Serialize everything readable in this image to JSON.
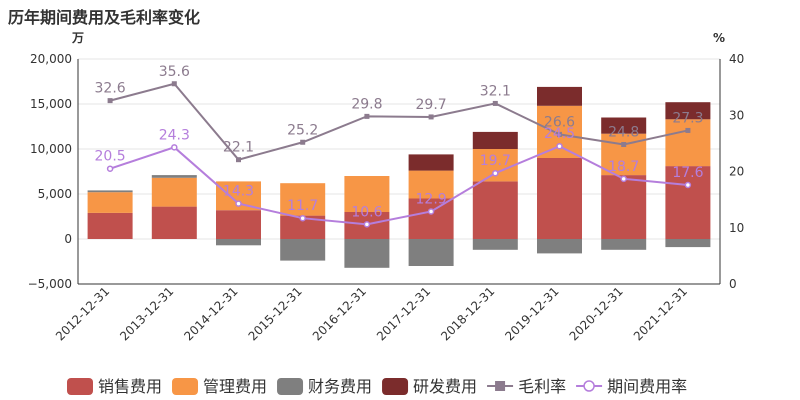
{
  "chart_data": {
    "type": "bar",
    "title": "历年期间费用及毛利率变化",
    "y_left_unit": "万",
    "y_right_unit": "%",
    "y_left_ticks": [
      "20,000",
      "15,000",
      "10,000",
      "5,000",
      "0",
      "−5,000"
    ],
    "y_right_ticks": [
      "40",
      "30",
      "20",
      "10",
      "0"
    ],
    "ylim_left": [
      -5000,
      20000
    ],
    "ylim_right": [
      0,
      40
    ],
    "categories": [
      "2012-12-31",
      "2013-12-31",
      "2014-12-31",
      "2015-12-31",
      "2016-12-31",
      "2017-12-31",
      "2018-12-31",
      "2019-12-31",
      "2020-12-31",
      "2021-12-31"
    ],
    "bar_series": [
      {
        "name": "销售费用",
        "color": "#c0504d",
        "values": [
          2900,
          3600,
          3200,
          2600,
          3000,
          4500,
          6400,
          9000,
          7100,
          8100
        ]
      },
      {
        "name": "管理费用",
        "color": "#f79646",
        "values": [
          2300,
          3200,
          3200,
          3600,
          4000,
          3100,
          3600,
          5800,
          4600,
          5200
        ]
      },
      {
        "name": "财务费用",
        "color": "#7f7f7f",
        "values": [
          200,
          300,
          -700,
          -2400,
          -3200,
          -3000,
          -1200,
          -1600,
          -1200,
          -900
        ]
      },
      {
        "name": "研发费用",
        "color": "#7b2c2c",
        "values": [
          0,
          0,
          0,
          0,
          0,
          1800,
          1900,
          2100,
          1800,
          1900
        ]
      }
    ],
    "line_series": [
      {
        "name": "毛利率",
        "color": "#8c7b8e",
        "marker": "square",
        "values": [
          32.6,
          35.6,
          22.1,
          25.2,
          29.8,
          29.7,
          32.1,
          26.6,
          24.8,
          27.3
        ]
      },
      {
        "name": "期间费用率",
        "color": "#b57edc",
        "marker": "circle",
        "values": [
          20.5,
          24.3,
          14.3,
          11.7,
          10.6,
          12.9,
          19.7,
          24.5,
          18.7,
          17.6
        ]
      }
    ],
    "grid": true,
    "legend_position": "bottom"
  }
}
